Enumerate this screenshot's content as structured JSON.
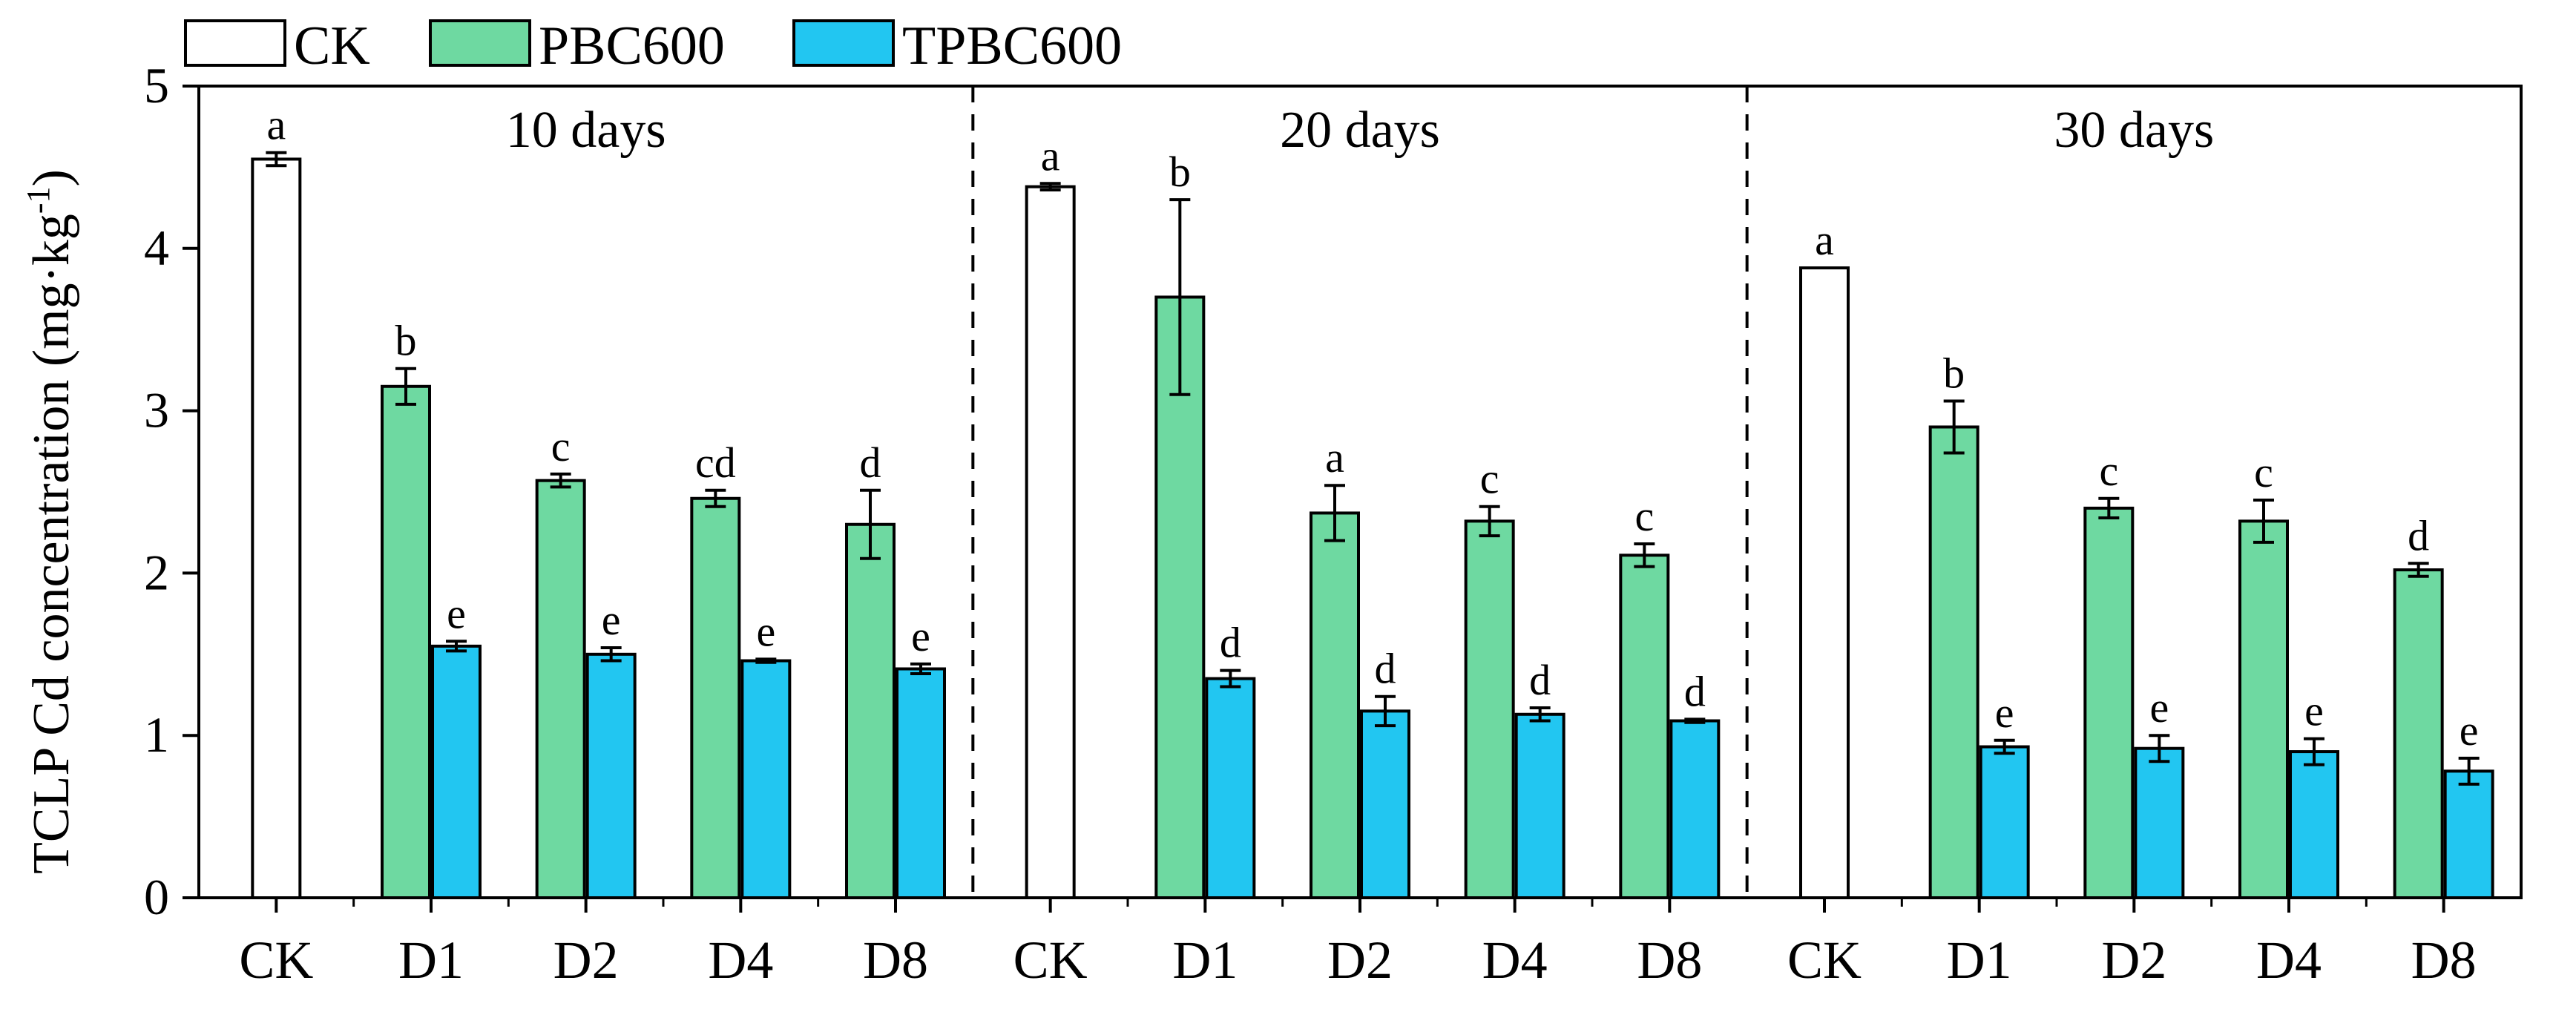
{
  "chart_data": {
    "type": "bar",
    "title": "",
    "xlabel": "",
    "ylabel": "TCLP Cd concentration (mg·kg",
    "ylabel_sup": "-1",
    "ylabel_close": ")",
    "ylim": [
      0,
      5
    ],
    "yticks": [
      "0",
      "1",
      "2",
      "3",
      "4",
      "5"
    ],
    "grid": false,
    "legend_position": "top-left",
    "colors": {
      "CK": "#ffffff",
      "PBC600": "#6ed9a1",
      "TPBC600": "#22c6f1"
    },
    "legend": [
      "CK",
      "PBC600",
      "TPBC600"
    ],
    "panels": [
      {
        "label": "10 days",
        "categories": [
          "CK",
          "D1",
          "D2",
          "D4",
          "D8"
        ],
        "bars": [
          {
            "category": "CK",
            "series": "CK",
            "value": 4.55,
            "error": 0.04,
            "letter": "a"
          },
          {
            "category": "D1",
            "series": "PBC600",
            "value": 3.15,
            "error": 0.11,
            "letter": "b"
          },
          {
            "category": "D1",
            "series": "TPBC600",
            "value": 1.55,
            "error": 0.03,
            "letter": "e"
          },
          {
            "category": "D2",
            "series": "PBC600",
            "value": 2.57,
            "error": 0.04,
            "letter": "c"
          },
          {
            "category": "D2",
            "series": "TPBC600",
            "value": 1.5,
            "error": 0.04,
            "letter": "e"
          },
          {
            "category": "D4",
            "series": "PBC600",
            "value": 2.46,
            "error": 0.05,
            "letter": "cd"
          },
          {
            "category": "D4",
            "series": "TPBC600",
            "value": 1.46,
            "error": 0.01,
            "letter": "e"
          },
          {
            "category": "D8",
            "series": "PBC600",
            "value": 2.3,
            "error": 0.21,
            "letter": "d"
          },
          {
            "category": "D8",
            "series": "TPBC600",
            "value": 1.41,
            "error": 0.03,
            "letter": "e"
          }
        ]
      },
      {
        "label": "20 days",
        "categories": [
          "CK",
          "D1",
          "D2",
          "D4",
          "D8"
        ],
        "bars": [
          {
            "category": "CK",
            "series": "CK",
            "value": 4.38,
            "error": 0.02,
            "letter": "a"
          },
          {
            "category": "D1",
            "series": "PBC600",
            "value": 3.7,
            "error": 0.6,
            "letter": "b"
          },
          {
            "category": "D1",
            "series": "TPBC600",
            "value": 1.35,
            "error": 0.05,
            "letter": "d"
          },
          {
            "category": "D2",
            "series": "PBC600",
            "value": 2.37,
            "error": 0.17,
            "letter": "a"
          },
          {
            "category": "D2",
            "series": "TPBC600",
            "value": 1.15,
            "error": 0.09,
            "letter": "d"
          },
          {
            "category": "D4",
            "series": "PBC600",
            "value": 2.32,
            "error": 0.09,
            "letter": "c"
          },
          {
            "category": "D4",
            "series": "TPBC600",
            "value": 1.13,
            "error": 0.04,
            "letter": "d"
          },
          {
            "category": "D8",
            "series": "PBC600",
            "value": 2.11,
            "error": 0.07,
            "letter": "c"
          },
          {
            "category": "D8",
            "series": "TPBC600",
            "value": 1.09,
            "error": 0.01,
            "letter": "d"
          }
        ]
      },
      {
        "label": "30 days",
        "categories": [
          "CK",
          "D1",
          "D2",
          "D4",
          "D8"
        ],
        "bars": [
          {
            "category": "CK",
            "series": "CK",
            "value": 3.88,
            "error": 0.0,
            "letter": "a"
          },
          {
            "category": "D1",
            "series": "PBC600",
            "value": 2.9,
            "error": 0.16,
            "letter": "b"
          },
          {
            "category": "D1",
            "series": "TPBC600",
            "value": 0.93,
            "error": 0.04,
            "letter": "e"
          },
          {
            "category": "D2",
            "series": "PBC600",
            "value": 2.4,
            "error": 0.06,
            "letter": "c"
          },
          {
            "category": "D2",
            "series": "TPBC600",
            "value": 0.92,
            "error": 0.08,
            "letter": "e"
          },
          {
            "category": "D4",
            "series": "PBC600",
            "value": 2.32,
            "error": 0.13,
            "letter": "c"
          },
          {
            "category": "D4",
            "series": "TPBC600",
            "value": 0.9,
            "error": 0.08,
            "letter": "e"
          },
          {
            "category": "D8",
            "series": "PBC600",
            "value": 2.02,
            "error": 0.04,
            "letter": "d"
          },
          {
            "category": "D8",
            "series": "TPBC600",
            "value": 0.78,
            "error": 0.08,
            "letter": "e"
          }
        ]
      }
    ]
  }
}
